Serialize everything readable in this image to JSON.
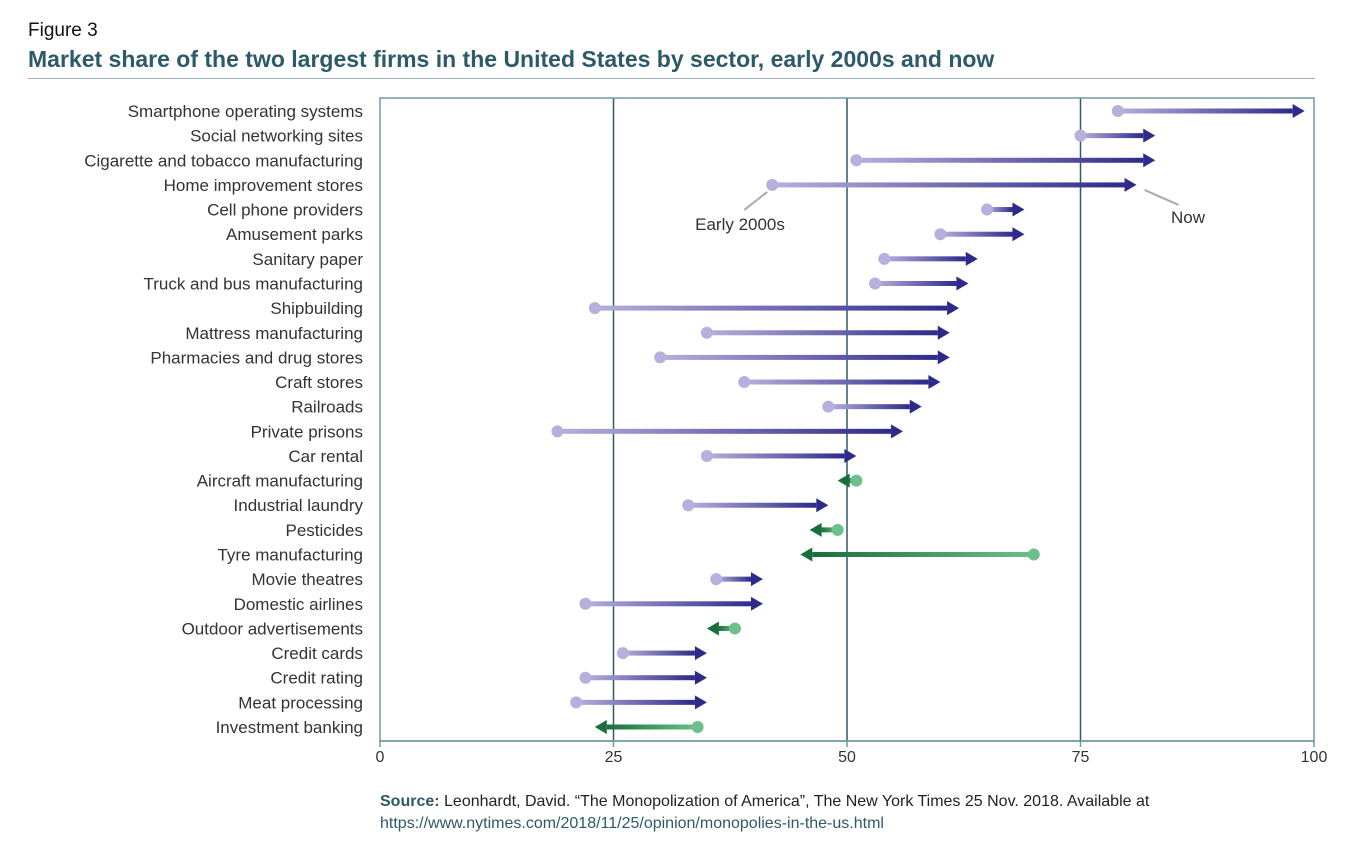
{
  "figure_label": "Figure 3",
  "title": "Market share of the two largest firms in the United States by sector, early 2000s and now",
  "annotations": {
    "early": "Early 2000s",
    "now": "Now"
  },
  "source": {
    "label": "Source:",
    "text": " Leonhardt, David. “The Monopolization of America”, The New York Times 25 Nov. 2018. Available at",
    "url": "https://www.nytimes.com/2018/11/25/opinion/monopolies-in-the-us.html"
  },
  "colors": {
    "frame": "#6f98a5",
    "gridline": "#2d5a68",
    "increase_start": "#b6b0dc",
    "increase_end": "#2e2a8a",
    "decrease_start": "#6cc08c",
    "decrease_end": "#1a6e3c"
  },
  "chart_data": {
    "type": "arrow-dumbbell",
    "xlim": [
      0,
      100
    ],
    "xticks": [
      0,
      25,
      50,
      75,
      100
    ],
    "grid": "vertical at 25, 50, 75",
    "series": [
      {
        "name": "Early 2000s"
      },
      {
        "name": "Now"
      }
    ],
    "rows": [
      {
        "label": "Smartphone operating systems",
        "early": 79,
        "now": 99
      },
      {
        "label": "Social networking sites",
        "early": 75,
        "now": 83
      },
      {
        "label": "Cigarette and tobacco manufacturing",
        "early": 51,
        "now": 83
      },
      {
        "label": "Home improvement stores",
        "early": 42,
        "now": 81
      },
      {
        "label": "Cell phone providers",
        "early": 65,
        "now": 69
      },
      {
        "label": "Amusement parks",
        "early": 60,
        "now": 69
      },
      {
        "label": "Sanitary paper",
        "early": 54,
        "now": 64
      },
      {
        "label": "Truck and bus manufacturing",
        "early": 53,
        "now": 63
      },
      {
        "label": "Shipbuilding",
        "early": 23,
        "now": 62
      },
      {
        "label": "Mattress manufacturing",
        "early": 35,
        "now": 61
      },
      {
        "label": "Pharmacies and drug stores",
        "early": 30,
        "now": 61
      },
      {
        "label": "Craft stores",
        "early": 39,
        "now": 60
      },
      {
        "label": "Railroads",
        "early": 48,
        "now": 58
      },
      {
        "label": "Private prisons",
        "early": 19,
        "now": 56
      },
      {
        "label": "Car rental",
        "early": 35,
        "now": 51
      },
      {
        "label": "Aircraft manufacturing",
        "early": 51,
        "now": 49
      },
      {
        "label": "Industrial laundry",
        "early": 33,
        "now": 48
      },
      {
        "label": "Pesticides",
        "early": 49,
        "now": 46
      },
      {
        "label": "Tyre manufacturing",
        "early": 70,
        "now": 45
      },
      {
        "label": "Movie theatres",
        "early": 36,
        "now": 41
      },
      {
        "label": "Domestic airlines",
        "early": 22,
        "now": 41
      },
      {
        "label": "Outdoor advertisements",
        "early": 38,
        "now": 35
      },
      {
        "label": "Credit cards",
        "early": 26,
        "now": 35
      },
      {
        "label": "Credit rating",
        "early": 22,
        "now": 35
      },
      {
        "label": "Meat processing",
        "early": 21,
        "now": 35
      },
      {
        "label": "Investment banking",
        "early": 34,
        "now": 23
      }
    ]
  }
}
